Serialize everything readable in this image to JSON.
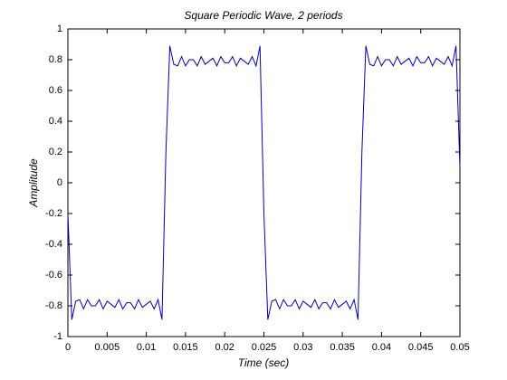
{
  "chart_data": {
    "type": "line",
    "title": "Square Periodic Wave, 2 periods",
    "x_label": "Time (sec)",
    "y_label": "Amplitude",
    "color": "#0000c0",
    "xlim": [
      0,
      0.05
    ],
    "ylim": [
      -1,
      1
    ],
    "xticks": [
      0,
      0.005,
      0.01,
      0.015,
      0.02,
      0.025,
      0.03,
      0.035,
      0.04,
      0.045,
      0.05
    ],
    "yticks": [
      -1,
      -0.8,
      -0.6,
      -0.4,
      -0.2,
      0,
      0.2,
      0.4,
      0.6,
      0.8,
      1
    ],
    "x": [
      0,
      0.0005,
      0.001,
      0.0015,
      0.002,
      0.0025,
      0.003,
      0.0035,
      0.004,
      0.0045,
      0.005,
      0.0055,
      0.006,
      0.0065,
      0.007,
      0.0075,
      0.008,
      0.0085,
      0.009,
      0.0095,
      0.01,
      0.0105,
      0.011,
      0.0115,
      0.012,
      0.0125,
      0.013,
      0.0135,
      0.014,
      0.0145,
      0.015,
      0.0155,
      0.016,
      0.0165,
      0.017,
      0.0175,
      0.018,
      0.0185,
      0.019,
      0.0195,
      0.02,
      0.0205,
      0.021,
      0.0215,
      0.022,
      0.0225,
      0.023,
      0.0235,
      0.024,
      0.0245,
      0.025,
      0.0255,
      0.026,
      0.0265,
      0.027,
      0.0275,
      0.028,
      0.0285,
      0.029,
      0.0295,
      0.03,
      0.0305,
      0.031,
      0.0315,
      0.032,
      0.0325,
      0.033,
      0.0335,
      0.034,
      0.0345,
      0.035,
      0.0355,
      0.036,
      0.0365,
      0.037,
      0.0375,
      0.038,
      0.0385,
      0.039,
      0.0395,
      0.04,
      0.0405,
      0.041,
      0.0415,
      0.042,
      0.0425,
      0.043,
      0.0435,
      0.044,
      0.0445,
      0.045,
      0.0455,
      0.046,
      0.0465,
      0.047,
      0.0475,
      0.048,
      0.0485,
      0.049,
      0.0495,
      0.05
    ],
    "values": [
      -0.2,
      -0.89,
      -0.77,
      -0.76,
      -0.82,
      -0.76,
      -0.8,
      -0.8,
      -0.76,
      -0.82,
      -0.77,
      -0.79,
      -0.81,
      -0.76,
      -0.82,
      -0.78,
      -0.78,
      -0.82,
      -0.76,
      -0.81,
      -0.79,
      -0.77,
      -0.82,
      -0.76,
      -0.89,
      0.2,
      0.89,
      0.77,
      0.76,
      0.82,
      0.76,
      0.8,
      0.8,
      0.76,
      0.82,
      0.77,
      0.79,
      0.81,
      0.76,
      0.82,
      0.78,
      0.78,
      0.82,
      0.76,
      0.81,
      0.79,
      0.77,
      0.82,
      0.76,
      0.89,
      -0.2,
      -0.89,
      -0.77,
      -0.76,
      -0.82,
      -0.76,
      -0.8,
      -0.8,
      -0.76,
      -0.82,
      -0.77,
      -0.79,
      -0.81,
      -0.76,
      -0.82,
      -0.78,
      -0.78,
      -0.82,
      -0.76,
      -0.81,
      -0.79,
      -0.77,
      -0.82,
      -0.76,
      -0.89,
      0.2,
      0.89,
      0.77,
      0.76,
      0.82,
      0.76,
      0.8,
      0.8,
      0.76,
      0.82,
      0.77,
      0.79,
      0.81,
      0.76,
      0.82,
      0.78,
      0.78,
      0.82,
      0.76,
      0.81,
      0.79,
      0.77,
      0.82,
      0.76,
      0.89,
      0.1
    ]
  }
}
